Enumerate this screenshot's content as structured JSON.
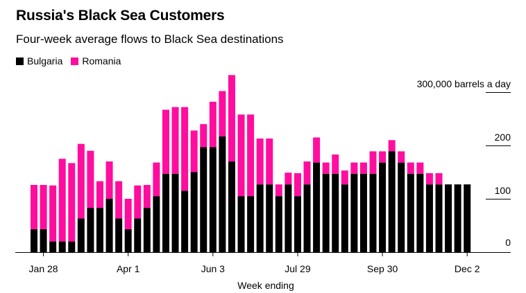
{
  "chart_data": {
    "type": "bar",
    "stacked": true,
    "title": "Russia's Black Sea Customers",
    "subtitle": "Four-week average flows to Black Sea destinations",
    "xlabel": "Week ending",
    "ylabel": "barrels a day",
    "ylim": [
      0,
      300000
    ],
    "y_ticks": [
      {
        "value": 0,
        "label": "0"
      },
      {
        "value": 100000,
        "label": "100"
      },
      {
        "value": 200000,
        "label": "200"
      },
      {
        "value": 300000,
        "label": "300,000 barrels a day"
      }
    ],
    "x_tick_labels": [
      {
        "index": 1,
        "label": "Jan 28"
      },
      {
        "index": 10,
        "label": "Apr 1"
      },
      {
        "index": 19,
        "label": "Jun 3"
      },
      {
        "index": 28,
        "label": "Jul 29"
      },
      {
        "index": 37,
        "label": "Sep 30"
      },
      {
        "index": 46,
        "label": "Dec 2"
      }
    ],
    "num_weeks": 47,
    "series": [
      {
        "name": "Bulgaria",
        "color": "#000000",
        "values": [
          43000,
          43000,
          20000,
          20000,
          20000,
          63000,
          83000,
          83000,
          100000,
          63000,
          43000,
          63000,
          83000,
          105000,
          147000,
          147000,
          115000,
          150000,
          197000,
          197000,
          217000,
          170000,
          105000,
          105000,
          127000,
          127000,
          105000,
          127000,
          105000,
          127000,
          168000,
          147000,
          147000,
          127000,
          147000,
          147000,
          147000,
          168000,
          189000,
          168000,
          147000,
          147000,
          127000,
          127000,
          127000,
          127000,
          127000
        ]
      },
      {
        "name": "Romania",
        "color": "#ff0d9e",
        "values": [
          83000,
          83000,
          105000,
          155000,
          147000,
          140000,
          107000,
          50000,
          70000,
          70000,
          57000,
          62000,
          43000,
          63000,
          120000,
          125000,
          157000,
          78000,
          43000,
          85000,
          85000,
          162000,
          153000,
          153000,
          86000,
          86000,
          22000,
          22000,
          43000,
          43000,
          47000,
          21000,
          36000,
          26000,
          21000,
          21000,
          42000,
          21000,
          21000,
          21000,
          21000,
          21000,
          21000,
          21000,
          0,
          0,
          0
        ]
      }
    ]
  }
}
